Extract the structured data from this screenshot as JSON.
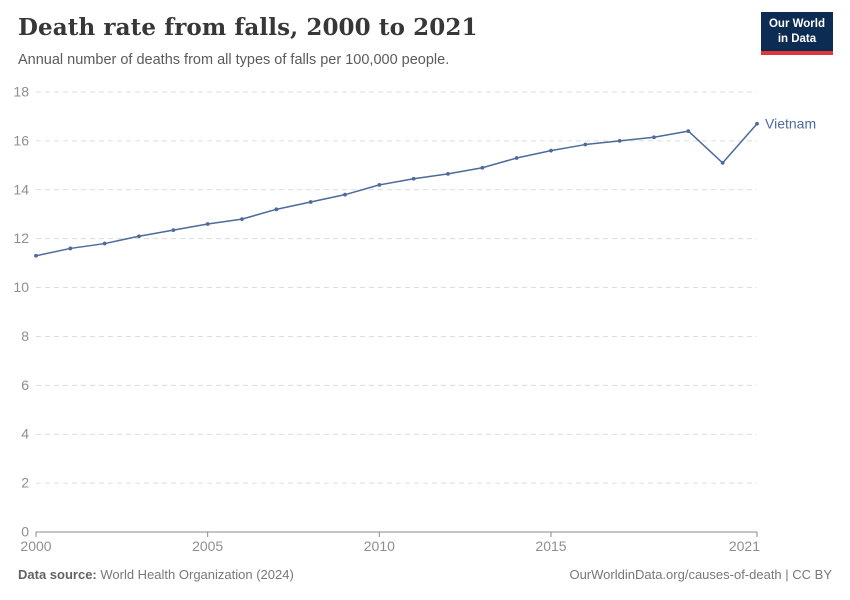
{
  "header": {
    "title": "Death rate from falls, 2000 to 2021",
    "subtitle": "Annual number of deaths from all types of falls per 100,000 people.",
    "logo": {
      "line1": "Our World",
      "line2": "in Data",
      "bg_color": "#0d2c54",
      "stripe_color": "#e0373a"
    }
  },
  "chart_data": {
    "type": "line",
    "title": "Death rate from falls, 2000 to 2021",
    "xlabel": "",
    "ylabel": "",
    "xlim": [
      2000,
      2021
    ],
    "ylim": [
      0,
      18
    ],
    "ytick_step": 2,
    "xticks": [
      2000,
      2005,
      2010,
      2015,
      2021
    ],
    "grid": "horizontal-dashed",
    "legend": "end-of-line-label",
    "x": [
      2000,
      2001,
      2002,
      2003,
      2004,
      2005,
      2006,
      2007,
      2008,
      2009,
      2010,
      2011,
      2012,
      2013,
      2014,
      2015,
      2016,
      2017,
      2018,
      2019,
      2020,
      2021
    ],
    "series": [
      {
        "name": "Vietnam",
        "color": "#4C6A9C",
        "values": [
          11.3,
          11.6,
          11.8,
          12.1,
          12.35,
          12.6,
          12.8,
          13.2,
          13.5,
          13.8,
          14.2,
          14.45,
          14.65,
          14.9,
          15.3,
          15.6,
          15.85,
          16.0,
          16.15,
          16.4,
          15.1,
          16.7
        ]
      }
    ],
    "axis_color": "#8a8a8a",
    "grid_color": "#dcdcdc",
    "tick_label_color": "#8f8f8f"
  },
  "footer": {
    "source_label": "Data source:",
    "source_value": " World Health Organization (2024)",
    "right_text": "OurWorldinData.org/causes-of-death | CC BY"
  }
}
